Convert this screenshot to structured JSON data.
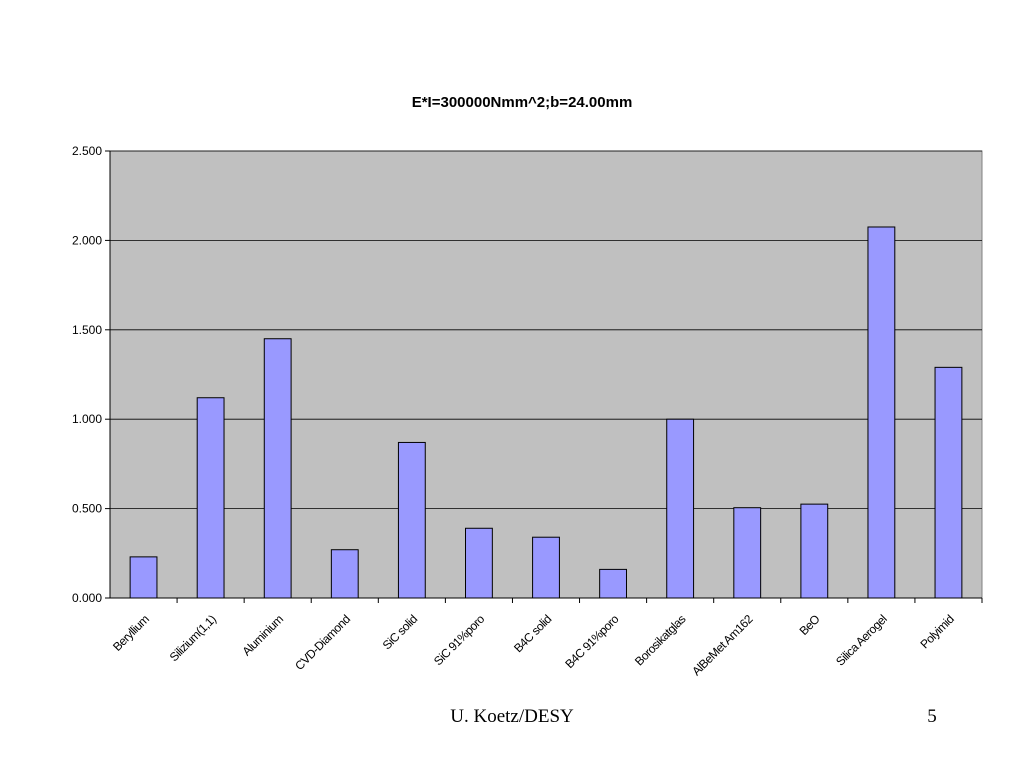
{
  "chart_data": {
    "type": "bar",
    "title": "E*I=300000Nmm^2;b=24.00mm",
    "xlabel": "",
    "ylabel": "",
    "categories": [
      "Beryllium",
      "Silizium(1,1)",
      "Aluminium",
      "CVD-Diamond",
      "SiC solid",
      "SiC 91%poro",
      "B4C solid",
      "B4C 91%poro",
      "Borosikatglas",
      "AlBeMet Am162",
      "BeO",
      "Silica Aerogel",
      "Polyimid"
    ],
    "values": [
      0.23,
      1.12,
      1.45,
      0.27,
      0.87,
      0.39,
      0.34,
      0.16,
      1.0,
      0.505,
      0.525,
      2.075,
      1.29
    ],
    "ylim": [
      0,
      2.5
    ],
    "yticks": [
      "0.000",
      "0.500",
      "1.000",
      "1.500",
      "2.000",
      "2.500"
    ],
    "grid": true,
    "bar_color": "#9999ff",
    "plot_background": "#c0c0c0"
  },
  "footer": {
    "author": "U. Koetz/DESY",
    "page": "5"
  }
}
